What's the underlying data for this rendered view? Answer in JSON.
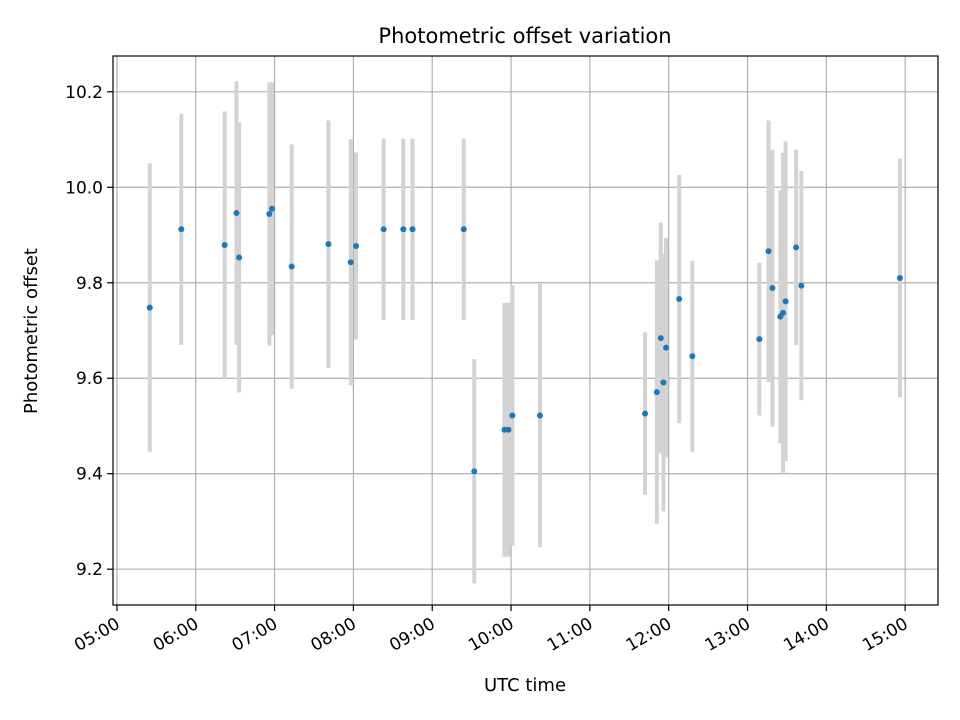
{
  "chart_data": {
    "type": "scatter",
    "title": "Photometric offset variation",
    "xlabel": "UTC time",
    "ylabel": "Photometric offset",
    "xlim": [
      "04:57",
      "15:25"
    ],
    "ylim": [
      9.125,
      10.275
    ],
    "x_ticks": [
      "05:00",
      "06:00",
      "07:00",
      "08:00",
      "09:00",
      "10:00",
      "11:00",
      "12:00",
      "13:00",
      "14:00",
      "15:00"
    ],
    "y_ticks": [
      9.2,
      9.4,
      9.6,
      9.8,
      10.0,
      10.2
    ],
    "grid": true,
    "marker_color": "#1f77b4",
    "errorbar_color": "#d3d3d3",
    "points": [
      {
        "time": "05:25",
        "y": 9.748,
        "err": 0.302
      },
      {
        "time": "05:49",
        "y": 9.912,
        "err": 0.242
      },
      {
        "time": "06:22",
        "y": 9.879,
        "err": 0.28
      },
      {
        "time": "06:31",
        "y": 9.946,
        "err": 0.276
      },
      {
        "time": "06:33",
        "y": 9.853,
        "err": 0.283
      },
      {
        "time": "06:56",
        "y": 9.944,
        "err": 0.276
      },
      {
        "time": "06:58",
        "y": 9.955,
        "err": 0.265
      },
      {
        "time": "07:13",
        "y": 9.834,
        "err": 0.256
      },
      {
        "time": "07:41",
        "y": 9.881,
        "err": 0.259
      },
      {
        "time": "07:58",
        "y": 9.843,
        "err": 0.258
      },
      {
        "time": "08:02",
        "y": 9.877,
        "err": 0.196
      },
      {
        "time": "08:23",
        "y": 9.912,
        "err": 0.19
      },
      {
        "time": "08:38",
        "y": 9.912,
        "err": 0.19
      },
      {
        "time": "08:45",
        "y": 9.912,
        "err": 0.19
      },
      {
        "time": "09:24",
        "y": 9.912,
        "err": 0.19
      },
      {
        "time": "09:32",
        "y": 9.405,
        "err": 0.235
      },
      {
        "time": "09:55",
        "y": 9.492,
        "err": 0.266
      },
      {
        "time": "09:58",
        "y": 9.492,
        "err": 0.266
      },
      {
        "time": "10:01",
        "y": 9.522,
        "err": 0.273
      },
      {
        "time": "10:22",
        "y": 9.522,
        "err": 0.276
      },
      {
        "time": "11:42",
        "y": 9.526,
        "err": 0.17
      },
      {
        "time": "11:51",
        "y": 9.571,
        "err": 0.276
      },
      {
        "time": "11:54",
        "y": 9.684,
        "err": 0.242
      },
      {
        "time": "11:56",
        "y": 9.591,
        "err": 0.27
      },
      {
        "time": "11:58",
        "y": 9.664,
        "err": 0.23
      },
      {
        "time": "12:08",
        "y": 9.766,
        "err": 0.26
      },
      {
        "time": "12:18",
        "y": 9.646,
        "err": 0.2
      },
      {
        "time": "13:09",
        "y": 9.682,
        "err": 0.16
      },
      {
        "time": "13:16",
        "y": 9.866,
        "err": 0.274
      },
      {
        "time": "13:19",
        "y": 9.789,
        "err": 0.29
      },
      {
        "time": "13:25",
        "y": 9.729,
        "err": 0.265
      },
      {
        "time": "13:27",
        "y": 9.737,
        "err": 0.335
      },
      {
        "time": "13:29",
        "y": 9.761,
        "err": 0.335
      },
      {
        "time": "13:37",
        "y": 9.874,
        "err": 0.205
      },
      {
        "time": "13:41",
        "y": 9.794,
        "err": 0.24
      },
      {
        "time": "14:56",
        "y": 9.81,
        "err": 0.25
      }
    ]
  }
}
